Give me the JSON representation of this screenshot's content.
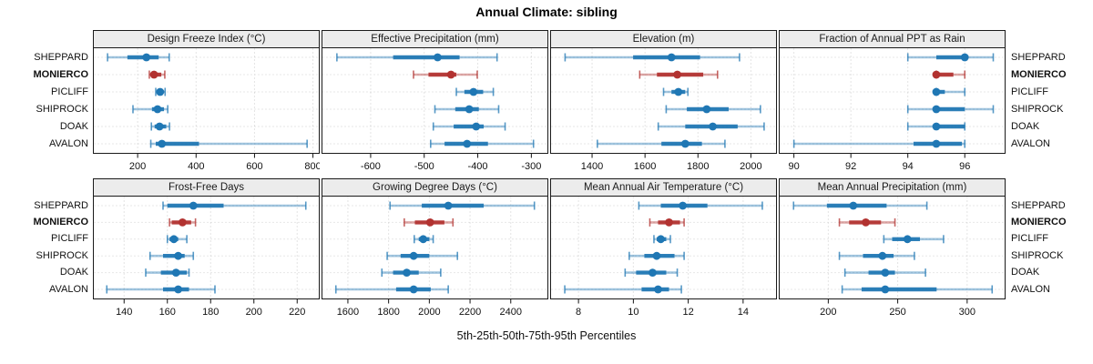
{
  "stations": [
    "SHEPPARD",
    "MONIERCO",
    "PICLIFF",
    "SHIPROCK",
    "DOAK",
    "AVALON"
  ],
  "highlight_station": "MONIERCO",
  "colors": {
    "series_blue": "#1f77b4",
    "highlight_red": "#b23230",
    "grid": "#c9c9c9",
    "strip_bg": "#ececec",
    "border": "#1a1a1a"
  },
  "chart_data": {
    "type": "scatter",
    "subtype": "percentile-interval-dotplot",
    "title": "Annual Climate: sibling",
    "xlabel": "5th-25th-50th-75th-95th Percentiles",
    "legend_position": "none",
    "grid": "dotted, at major x ticks and at each station row",
    "percentiles": [
      5,
      25,
      50,
      75,
      95
    ],
    "row_categories": [
      "SHEPPARD",
      "MONIERCO",
      "PICLIFF",
      "SHIPROCK",
      "DOAK",
      "AVALON"
    ],
    "panels": [
      {
        "id": "design-freeze-index",
        "title": "Design Freeze Index (°C)",
        "row": 0,
        "col": 0,
        "xlim": [
          50,
          820
        ],
        "ticks": [
          200,
          400,
          600,
          800
        ],
        "values": [
          [
            97,
            165,
            230,
            272,
            308
          ],
          [
            240,
            248,
            256,
            281,
            293
          ],
          [
            262,
            268,
            277,
            288,
            294
          ],
          [
            184,
            249,
            268,
            290,
            303
          ],
          [
            247,
            258,
            275,
            298,
            309
          ],
          [
            245,
            262,
            283,
            410,
            780
          ]
        ]
      },
      {
        "id": "effective-precipitation",
        "title": "Effective Precipitation (mm)",
        "row": 0,
        "col": 1,
        "xlim": [
          -690,
          -270
        ],
        "ticks": [
          -600,
          -500,
          -400,
          -300
        ],
        "values": [
          [
            -663,
            -558,
            -475,
            -434,
            -364
          ],
          [
            -520,
            -492,
            -450,
            -440,
            -401
          ],
          [
            -440,
            -425,
            -408,
            -390,
            -371
          ],
          [
            -480,
            -442,
            -416,
            -398,
            -361
          ],
          [
            -483,
            -445,
            -403,
            -389,
            -349
          ],
          [
            -488,
            -462,
            -420,
            -381,
            -296
          ]
        ]
      },
      {
        "id": "elevation",
        "title": "Elevation (m)",
        "row": 0,
        "col": 2,
        "xlim": [
          1245,
          2095
        ],
        "ticks": [
          1400,
          1600,
          1800,
          2000
        ],
        "values": [
          [
            1298,
            1555,
            1700,
            1808,
            1957
          ],
          [
            1580,
            1645,
            1722,
            1820,
            1874
          ],
          [
            1670,
            1700,
            1726,
            1752,
            1762
          ],
          [
            1680,
            1758,
            1833,
            1916,
            2036
          ],
          [
            1650,
            1752,
            1856,
            1950,
            2050
          ],
          [
            1420,
            1662,
            1752,
            1815,
            1902
          ]
        ]
      },
      {
        "id": "fraction-of-annual-ppt-as-rain",
        "title": "Fraction of Annual PPT as Rain",
        "row": 0,
        "col": 3,
        "xlim": [
          89.5,
          97.4
        ],
        "ticks": [
          90,
          92,
          94,
          96
        ],
        "values": [
          [
            94,
            95,
            96,
            96.1,
            97
          ],
          [
            95,
            95,
            95,
            95.6,
            96
          ],
          [
            95,
            95,
            95,
            95.3,
            96
          ],
          [
            94,
            95,
            95,
            96,
            97
          ],
          [
            94,
            94.9,
            95,
            96,
            96
          ],
          [
            90,
            94.2,
            95,
            95.9,
            96
          ]
        ]
      },
      {
        "id": "frost-free-days",
        "title": "Frost-Free Days",
        "row": 1,
        "col": 0,
        "xlim": [
          126,
          230
        ],
        "ticks": [
          140,
          160,
          180,
          200,
          220
        ],
        "values": [
          [
            158,
            160,
            172,
            186,
            224
          ],
          [
            161,
            162,
            167,
            171,
            173
          ],
          [
            160,
            161,
            163,
            165,
            169
          ],
          [
            152,
            158,
            165,
            168,
            172
          ],
          [
            150,
            157,
            164,
            169,
            170
          ],
          [
            132,
            158,
            165,
            170,
            182
          ]
        ]
      },
      {
        "id": "growing-degree-days",
        "title": "Growing Degree Days (°C)",
        "row": 1,
        "col": 1,
        "xlim": [
          1475,
          2580
        ],
        "ticks": [
          1600,
          1800,
          2000,
          2200,
          2400
        ],
        "values": [
          [
            1807,
            1963,
            2093,
            2267,
            2516
          ],
          [
            1877,
            1929,
            2004,
            2074,
            2116
          ],
          [
            1926,
            1948,
            1970,
            2000,
            2019
          ],
          [
            1793,
            1859,
            1923,
            2000,
            2138
          ],
          [
            1767,
            1822,
            1889,
            1948,
            2056
          ],
          [
            1541,
            1837,
            1923,
            2007,
            2093
          ]
        ]
      },
      {
        "id": "mean-annual-air-temperature",
        "title": "Mean Annual Air Temperature (°C)",
        "row": 1,
        "col": 2,
        "xlim": [
          7,
          15.2
        ],
        "ticks": [
          8,
          10,
          12,
          14
        ],
        "values": [
          [
            10.2,
            11.0,
            11.8,
            12.7,
            14.7
          ],
          [
            10.6,
            10.9,
            11.3,
            11.7,
            11.85
          ],
          [
            10.75,
            10.85,
            11.0,
            11.2,
            11.35
          ],
          [
            9.85,
            10.4,
            10.85,
            11.5,
            11.85
          ],
          [
            9.7,
            10.1,
            10.7,
            11.2,
            11.6
          ],
          [
            7.5,
            10.3,
            10.9,
            11.3,
            11.75
          ]
        ]
      },
      {
        "id": "mean-annual-precipitation",
        "title": "Mean Annual Precipitation (mm)",
        "row": 1,
        "col": 3,
        "xlim": [
          165,
          327
        ],
        "ticks": [
          200,
          250,
          300
        ],
        "values": [
          [
            175,
            199,
            218,
            242,
            271
          ],
          [
            208,
            215,
            227,
            238,
            248
          ],
          [
            240,
            246,
            257,
            266,
            283
          ],
          [
            208,
            225,
            239,
            247,
            262
          ],
          [
            212,
            229,
            241,
            248,
            270
          ],
          [
            210,
            224,
            241,
            278,
            318
          ]
        ]
      }
    ]
  }
}
